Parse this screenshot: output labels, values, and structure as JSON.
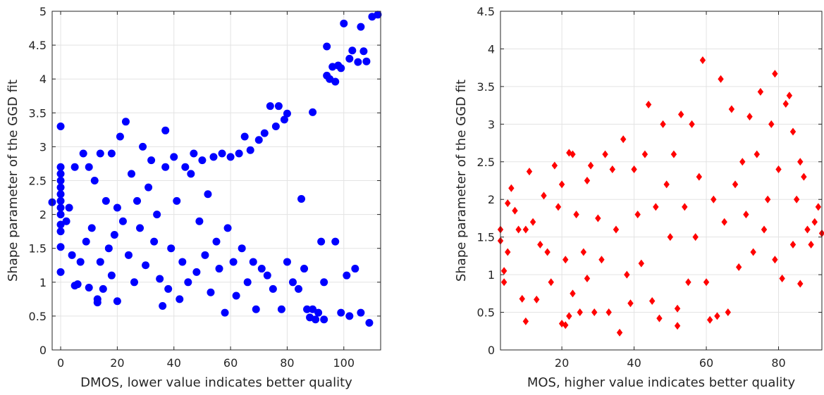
{
  "chart_data": [
    {
      "type": "scatter",
      "xlabel": "DMOS, lower value indicates better quality",
      "ylabel": "Shape parameter of the GGD fit",
      "xlim": [
        -3,
        113
      ],
      "ylim": [
        0,
        5
      ],
      "xticks": [
        0,
        20,
        40,
        60,
        80,
        100
      ],
      "yticks": [
        0,
        0.5,
        1,
        1.5,
        2,
        2.5,
        3,
        3.5,
        4,
        4.5,
        5
      ],
      "grid": true,
      "marker": "circle",
      "color": "#0000ff",
      "points": [
        [
          -3,
          2.18
        ],
        [
          0,
          3.3
        ],
        [
          0,
          2.7
        ],
        [
          0,
          2.6
        ],
        [
          0,
          2.5
        ],
        [
          0,
          2.4
        ],
        [
          0,
          2.3
        ],
        [
          0,
          2.2
        ],
        [
          0,
          2.1
        ],
        [
          0,
          2.0
        ],
        [
          0,
          1.85
        ],
        [
          0,
          1.75
        ],
        [
          0,
          1.52
        ],
        [
          0,
          1.15
        ],
        [
          2,
          1.9
        ],
        [
          3,
          2.1
        ],
        [
          4,
          1.4
        ],
        [
          5,
          2.7
        ],
        [
          5,
          0.95
        ],
        [
          6,
          0.97
        ],
        [
          7,
          1.3
        ],
        [
          8,
          2.9
        ],
        [
          9,
          1.6
        ],
        [
          10,
          0.92
        ],
        [
          10,
          2.7
        ],
        [
          11,
          1.8
        ],
        [
          12,
          2.5
        ],
        [
          13,
          0.7
        ],
        [
          13,
          0.75
        ],
        [
          14,
          1.3
        ],
        [
          14,
          2.9
        ],
        [
          15,
          0.9
        ],
        [
          16,
          2.2
        ],
        [
          17,
          1.5
        ],
        [
          18,
          1.1
        ],
        [
          18,
          2.9
        ],
        [
          19,
          1.7
        ],
        [
          20,
          0.72
        ],
        [
          20,
          2.1
        ],
        [
          21,
          3.15
        ],
        [
          22,
          1.9
        ],
        [
          23,
          3.37
        ],
        [
          24,
          1.4
        ],
        [
          25,
          2.6
        ],
        [
          26,
          1.0
        ],
        [
          27,
          2.2
        ],
        [
          28,
          1.8
        ],
        [
          29,
          3.0
        ],
        [
          30,
          1.25
        ],
        [
          31,
          2.4
        ],
        [
          32,
          2.8
        ],
        [
          33,
          1.6
        ],
        [
          34,
          2.0
        ],
        [
          35,
          1.05
        ],
        [
          36,
          0.65
        ],
        [
          37,
          2.7
        ],
        [
          37,
          3.24
        ],
        [
          38,
          0.9
        ],
        [
          39,
          1.5
        ],
        [
          40,
          2.85
        ],
        [
          41,
          2.2
        ],
        [
          42,
          0.75
        ],
        [
          43,
          1.3
        ],
        [
          44,
          2.7
        ],
        [
          45,
          1.0
        ],
        [
          46,
          2.6
        ],
        [
          47,
          2.9
        ],
        [
          48,
          1.15
        ],
        [
          49,
          1.9
        ],
        [
          50,
          2.8
        ],
        [
          51,
          1.4
        ],
        [
          52,
          2.3
        ],
        [
          53,
          0.85
        ],
        [
          54,
          2.85
        ],
        [
          55,
          1.6
        ],
        [
          56,
          1.2
        ],
        [
          57,
          2.9
        ],
        [
          58,
          0.55
        ],
        [
          59,
          1.8
        ],
        [
          60,
          2.85
        ],
        [
          61,
          1.3
        ],
        [
          62,
          0.8
        ],
        [
          63,
          2.9
        ],
        [
          64,
          1.5
        ],
        [
          65,
          3.15
        ],
        [
          66,
          1.0
        ],
        [
          67,
          2.95
        ],
        [
          68,
          1.3
        ],
        [
          69,
          0.6
        ],
        [
          70,
          3.1
        ],
        [
          71,
          1.2
        ],
        [
          72,
          3.2
        ],
        [
          73,
          1.1
        ],
        [
          74,
          3.6
        ],
        [
          75,
          0.9
        ],
        [
          76,
          3.3
        ],
        [
          77,
          3.6
        ],
        [
          78,
          0.6
        ],
        [
          79,
          3.4
        ],
        [
          80,
          3.49
        ],
        [
          80,
          1.3
        ],
        [
          82,
          1.0
        ],
        [
          84,
          0.9
        ],
        [
          85,
          2.23
        ],
        [
          86,
          1.2
        ],
        [
          87,
          0.6
        ],
        [
          88,
          0.48
        ],
        [
          89,
          3.51
        ],
        [
          89,
          0.6
        ],
        [
          90,
          0.45
        ],
        [
          91,
          0.55
        ],
        [
          92,
          1.6
        ],
        [
          93,
          0.45
        ],
        [
          93,
          1.0
        ],
        [
          94,
          4.48
        ],
        [
          94,
          4.05
        ],
        [
          95,
          4.0
        ],
        [
          96,
          4.18
        ],
        [
          97,
          1.6
        ],
        [
          97,
          3.96
        ],
        [
          98,
          4.2
        ],
        [
          99,
          4.16
        ],
        [
          99,
          0.55
        ],
        [
          100,
          4.82
        ],
        [
          101,
          1.1
        ],
        [
          102,
          4.3
        ],
        [
          102,
          0.5
        ],
        [
          103,
          4.42
        ],
        [
          104,
          1.2
        ],
        [
          105,
          4.25
        ],
        [
          106,
          4.77
        ],
        [
          106,
          0.55
        ],
        [
          107,
          4.41
        ],
        [
          108,
          4.26
        ],
        [
          109,
          0.4
        ],
        [
          110,
          4.92
        ],
        [
          112,
          4.95
        ]
      ]
    },
    {
      "type": "scatter",
      "xlabel": "MOS, higher value indicates better quality",
      "ylabel": "Shape parameter of the GGD fit",
      "xlim": [
        3,
        92
      ],
      "ylim": [
        0,
        4.5
      ],
      "xticks": [
        20,
        40,
        60,
        80
      ],
      "yticks": [
        0,
        0.5,
        1,
        1.5,
        2,
        2.5,
        3,
        3.5,
        4,
        4.5
      ],
      "grid": true,
      "marker": "diamond",
      "color": "#ff0000",
      "points": [
        [
          3,
          1.6
        ],
        [
          3,
          1.45
        ],
        [
          4,
          1.05
        ],
        [
          4,
          0.9
        ],
        [
          5,
          1.95
        ],
        [
          5,
          1.3
        ],
        [
          6,
          2.15
        ],
        [
          7,
          1.85
        ],
        [
          8,
          1.6
        ],
        [
          9,
          0.68
        ],
        [
          10,
          0.38
        ],
        [
          10,
          1.6
        ],
        [
          11,
          2.37
        ],
        [
          12,
          1.7
        ],
        [
          13,
          0.67
        ],
        [
          14,
          1.4
        ],
        [
          15,
          2.05
        ],
        [
          16,
          1.3
        ],
        [
          17,
          0.9
        ],
        [
          18,
          2.45
        ],
        [
          19,
          1.9
        ],
        [
          20,
          0.35
        ],
        [
          20,
          2.2
        ],
        [
          21,
          0.33
        ],
        [
          21,
          1.2
        ],
        [
          22,
          2.62
        ],
        [
          22,
          0.45
        ],
        [
          23,
          2.6
        ],
        [
          23,
          0.75
        ],
        [
          24,
          1.8
        ],
        [
          25,
          0.5
        ],
        [
          26,
          1.3
        ],
        [
          27,
          2.25
        ],
        [
          27,
          0.95
        ],
        [
          28,
          2.45
        ],
        [
          29,
          0.5
        ],
        [
          30,
          1.75
        ],
        [
          31,
          1.2
        ],
        [
          32,
          2.6
        ],
        [
          33,
          0.5
        ],
        [
          34,
          2.4
        ],
        [
          35,
          1.6
        ],
        [
          36,
          0.23
        ],
        [
          37,
          2.8
        ],
        [
          38,
          1.0
        ],
        [
          39,
          0.62
        ],
        [
          40,
          2.4
        ],
        [
          41,
          1.8
        ],
        [
          42,
          1.15
        ],
        [
          43,
          2.6
        ],
        [
          44,
          3.26
        ],
        [
          45,
          0.65
        ],
        [
          46,
          1.9
        ],
        [
          47,
          0.42
        ],
        [
          48,
          3.0
        ],
        [
          49,
          2.2
        ],
        [
          50,
          1.5
        ],
        [
          51,
          2.6
        ],
        [
          52,
          0.55
        ],
        [
          52,
          0.32
        ],
        [
          53,
          3.13
        ],
        [
          54,
          1.9
        ],
        [
          55,
          0.9
        ],
        [
          56,
          3.0
        ],
        [
          57,
          1.5
        ],
        [
          58,
          2.3
        ],
        [
          59,
          3.85
        ],
        [
          60,
          0.9
        ],
        [
          61,
          0.4
        ],
        [
          62,
          2.0
        ],
        [
          63,
          0.45
        ],
        [
          64,
          3.6
        ],
        [
          65,
          1.7
        ],
        [
          66,
          0.5
        ],
        [
          67,
          3.2
        ],
        [
          68,
          2.2
        ],
        [
          69,
          1.1
        ],
        [
          70,
          2.5
        ],
        [
          71,
          1.8
        ],
        [
          72,
          3.1
        ],
        [
          73,
          1.3
        ],
        [
          74,
          2.6
        ],
        [
          75,
          3.43
        ],
        [
          76,
          1.6
        ],
        [
          77,
          2.0
        ],
        [
          78,
          3.0
        ],
        [
          79,
          3.67
        ],
        [
          79,
          1.2
        ],
        [
          80,
          2.4
        ],
        [
          81,
          0.95
        ],
        [
          82,
          3.27
        ],
        [
          83,
          3.38
        ],
        [
          84,
          2.9
        ],
        [
          84,
          1.4
        ],
        [
          85,
          2.0
        ],
        [
          86,
          2.5
        ],
        [
          86,
          0.88
        ],
        [
          87,
          2.3
        ],
        [
          88,
          1.6
        ],
        [
          89,
          1.4
        ],
        [
          90,
          1.7
        ],
        [
          91,
          1.9
        ],
        [
          92,
          1.55
        ]
      ]
    }
  ]
}
